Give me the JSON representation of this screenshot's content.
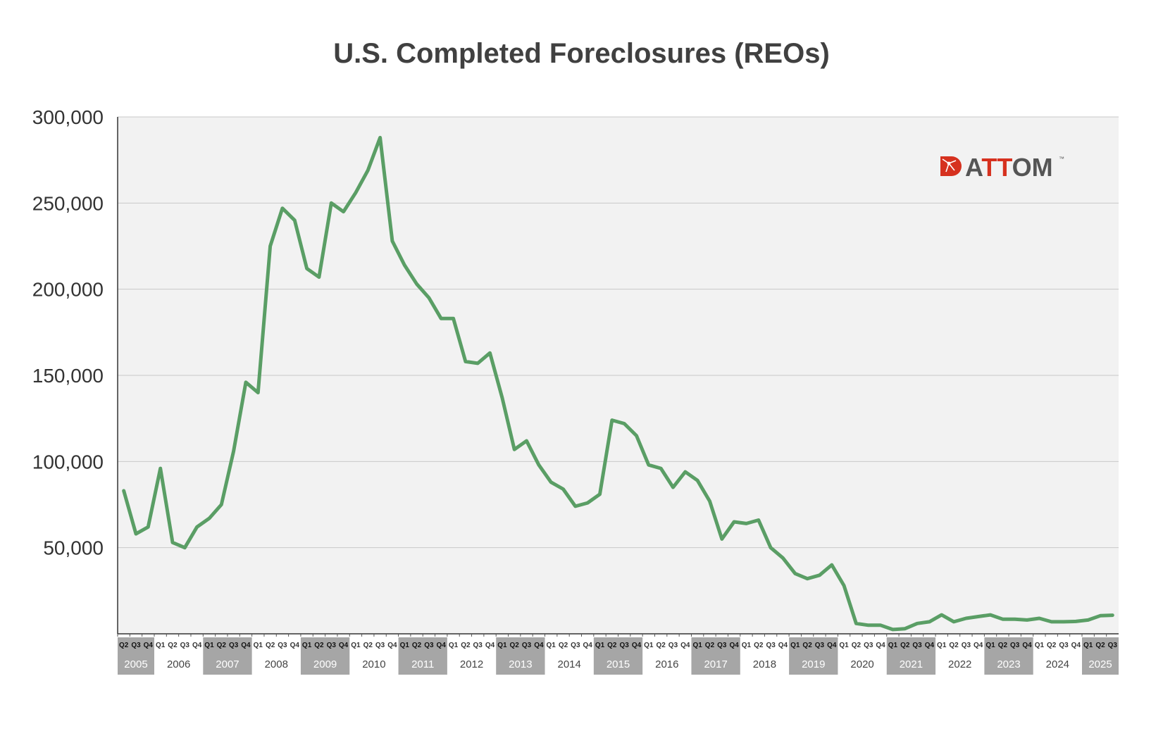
{
  "chart_data": {
    "type": "line",
    "title": "U.S. Completed Foreclosures (REOs)",
    "xlabel": "",
    "ylabel": "",
    "ylim": [
      0,
      300000
    ],
    "yticks": [
      "300,000",
      "250,000",
      "200,000",
      "150,000",
      "100,000",
      "50,000"
    ],
    "ytick_values": [
      300000,
      250000,
      200000,
      150000,
      100000,
      50000
    ],
    "grid": true,
    "line_color": "#5a9e65",
    "plot_bg": "#f2f2f2",
    "year_band_color": "#a6a6a6",
    "years": [
      {
        "label": "2005",
        "quarters": [
          "Q2",
          "Q3",
          "Q4"
        ],
        "shaded": true
      },
      {
        "label": "2006",
        "quarters": [
          "Q1",
          "Q2",
          "Q3",
          "Q4"
        ],
        "shaded": false
      },
      {
        "label": "2007",
        "quarters": [
          "Q1",
          "Q2",
          "Q3",
          "Q4"
        ],
        "shaded": true
      },
      {
        "label": "2008",
        "quarters": [
          "Q1",
          "Q2",
          "Q3",
          "Q4"
        ],
        "shaded": false
      },
      {
        "label": "2009",
        "quarters": [
          "Q1",
          "Q2",
          "Q3",
          "Q4"
        ],
        "shaded": true
      },
      {
        "label": "2010",
        "quarters": [
          "Q1",
          "Q2",
          "Q3",
          "Q4"
        ],
        "shaded": false
      },
      {
        "label": "2011",
        "quarters": [
          "Q1",
          "Q2",
          "Q3",
          "Q4"
        ],
        "shaded": true
      },
      {
        "label": "2012",
        "quarters": [
          "Q1",
          "Q2",
          "Q3",
          "Q4"
        ],
        "shaded": false
      },
      {
        "label": "2013",
        "quarters": [
          "Q1",
          "Q2",
          "Q3",
          "Q4"
        ],
        "shaded": true
      },
      {
        "label": "2014",
        "quarters": [
          "Q1",
          "Q2",
          "Q3",
          "Q4"
        ],
        "shaded": false
      },
      {
        "label": "2015",
        "quarters": [
          "Q1",
          "Q2",
          "Q3",
          "Q4"
        ],
        "shaded": true
      },
      {
        "label": "2016",
        "quarters": [
          "Q1",
          "Q2",
          "Q3",
          "Q4"
        ],
        "shaded": false
      },
      {
        "label": "2017",
        "quarters": [
          "Q1",
          "Q2",
          "Q3",
          "Q4"
        ],
        "shaded": true
      },
      {
        "label": "2018",
        "quarters": [
          "Q1",
          "Q2",
          "Q3",
          "Q4"
        ],
        "shaded": false
      },
      {
        "label": "2019",
        "quarters": [
          "Q1",
          "Q2",
          "Q3",
          "Q4"
        ],
        "shaded": true
      },
      {
        "label": "2020",
        "quarters": [
          "Q1",
          "Q2",
          "Q3",
          "Q4"
        ],
        "shaded": false
      },
      {
        "label": "2021",
        "quarters": [
          "Q1",
          "Q2",
          "Q3",
          "Q4"
        ],
        "shaded": true
      },
      {
        "label": "2022",
        "quarters": [
          "Q1",
          "Q2",
          "Q3",
          "Q4"
        ],
        "shaded": false
      },
      {
        "label": "2023",
        "quarters": [
          "Q1",
          "Q2",
          "Q3",
          "Q4"
        ],
        "shaded": true
      },
      {
        "label": "2024",
        "quarters": [
          "Q1",
          "Q2",
          "Q3",
          "Q4"
        ],
        "shaded": false
      },
      {
        "label": "2025",
        "quarters": [
          "Q1",
          "Q2",
          "Q3"
        ],
        "shaded": true
      }
    ],
    "series": [
      {
        "values": [
          83000,
          58000,
          62000,
          96000,
          53000,
          50000,
          62000,
          67000,
          75000,
          106000,
          146000,
          140000,
          225000,
          247000,
          240000,
          212000,
          207000,
          250000,
          245000,
          256000,
          269000,
          288000,
          228000,
          214000,
          203000,
          195000,
          183000,
          183000,
          158000,
          157000,
          163000,
          137000,
          107000,
          112000,
          98000,
          88000,
          84000,
          74000,
          76000,
          81000,
          124000,
          122000,
          115000,
          98000,
          96000,
          85000,
          94000,
          89000,
          77000,
          55000,
          65000,
          64000,
          66000,
          50000,
          44000,
          35000,
          32000,
          34000,
          40000,
          28000,
          6000,
          5000,
          5000,
          2500,
          3000,
          6000,
          7000,
          11000,
          7000,
          9000,
          10000,
          11000,
          8500,
          8500,
          8000,
          9000,
          7000,
          7000,
          7200,
          8000,
          10500,
          10800
        ]
      }
    ]
  },
  "logo": {
    "text_a": "A",
    "text_tt": "TT",
    "text_om": "OM",
    "tm": "™",
    "gray": "#555555",
    "red": "#d6311f"
  }
}
